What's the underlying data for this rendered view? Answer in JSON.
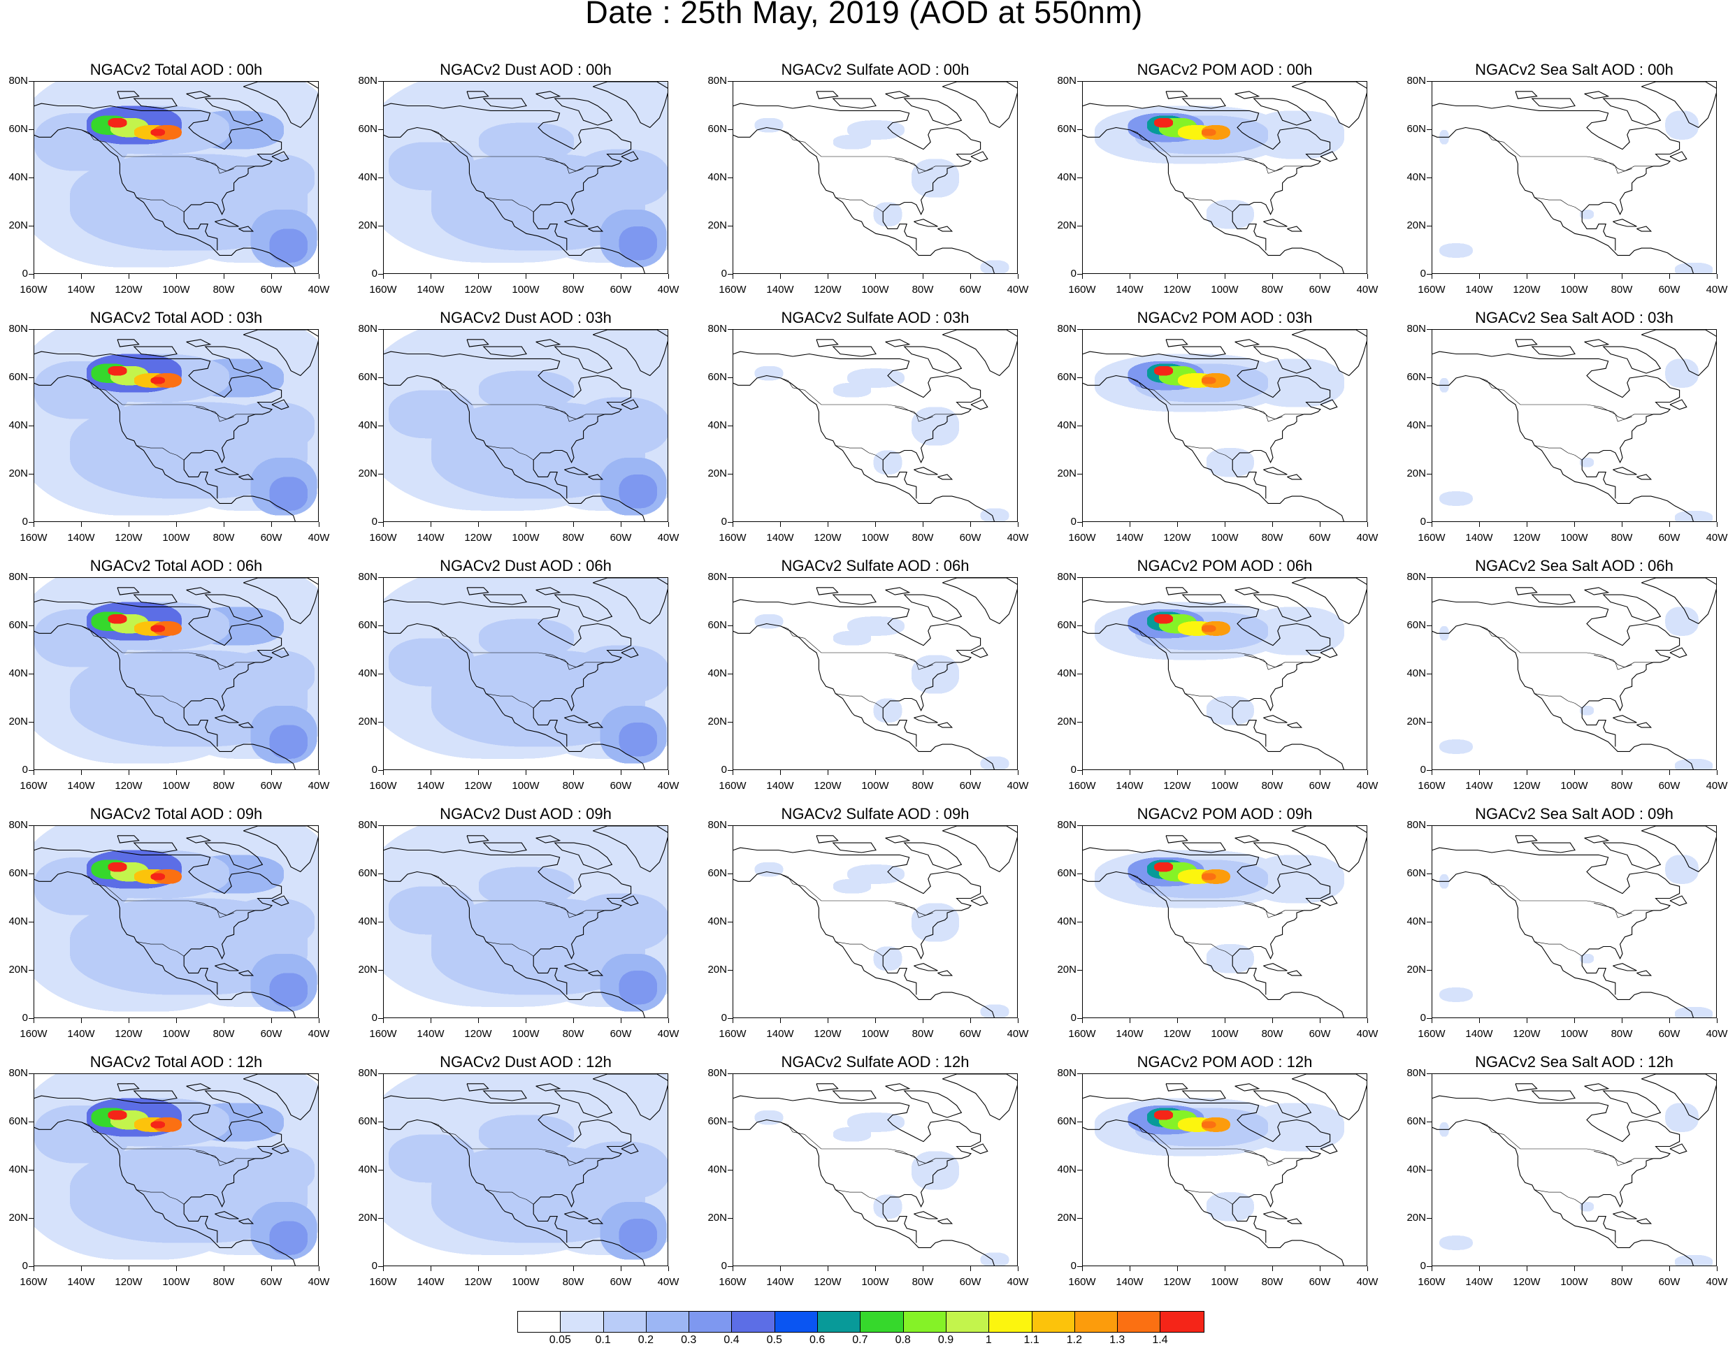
{
  "title": "Date : 25th May, 2019 (AOD at 550nm)",
  "lat_ticks": [
    "80N",
    "60N",
    "40N",
    "20N",
    "0"
  ],
  "lon_ticks": [
    "160W",
    "140W",
    "120W",
    "100W",
    "80W",
    "60W",
    "40W"
  ],
  "rows": [
    {
      "hour": "00h",
      "titles": [
        "NGACv2 Total AOD : 00h",
        "NGACv2 Dust AOD : 00h",
        "NGACv2 Sulfate AOD : 00h",
        "NGACv2 POM AOD : 00h",
        "NGACv2 Sea Salt AOD : 00h"
      ]
    },
    {
      "hour": "03h",
      "titles": [
        "NGACv2 Total AOD : 03h",
        "NGACv2 Dust AOD : 03h",
        "NGACv2 Sulfate AOD : 03h",
        "NGACv2 POM AOD : 03h",
        "NGACv2 Sea Salt AOD : 03h"
      ]
    },
    {
      "hour": "06h",
      "titles": [
        "NGACv2 Total AOD : 06h",
        "NGACv2 Dust AOD : 06h",
        "NGACv2 Sulfate AOD : 06h",
        "NGACv2 POM AOD : 06h",
        "NGACv2 Sea Salt AOD : 06h"
      ]
    },
    {
      "hour": "09h",
      "titles": [
        "NGACv2 Total AOD : 09h",
        "NGACv2 Dust AOD : 09h",
        "NGACv2 Sulfate AOD : 09h",
        "NGACv2 POM AOD : 09h",
        "NGACv2 Sea Salt  AOD : 09h"
      ]
    },
    {
      "hour": "12h",
      "titles": [
        "NGACv2 Total AOD  : 12h",
        "NGACv2 Dust AOD : 12h",
        "NGACv2 Sulfate AOD : 12h",
        "NGACv2 POM  AOD : 12h",
        "NGACv2 Sea Salt  AOD : 12h"
      ]
    }
  ],
  "species": [
    "total",
    "dust",
    "sulfate",
    "pom",
    "seasalt"
  ],
  "colorbar": {
    "colors": [
      "#ffffff",
      "#d6e2fb",
      "#b9ccf8",
      "#9cb6f4",
      "#7e98f0",
      "#5c6ee6",
      "#0a55f2",
      "#089a99",
      "#36d82c",
      "#85f227",
      "#c3f44c",
      "#fcf50e",
      "#fcc30b",
      "#fc9c0c",
      "#fb7012",
      "#f52518"
    ],
    "labels": [
      "0.05",
      "0.1",
      "0.2",
      "0.3",
      "0.4",
      "0.5",
      "0.6",
      "0.7",
      "0.8",
      "0.9",
      "1",
      "1.1",
      "1.2",
      "1.3",
      "1.4"
    ]
  }
}
